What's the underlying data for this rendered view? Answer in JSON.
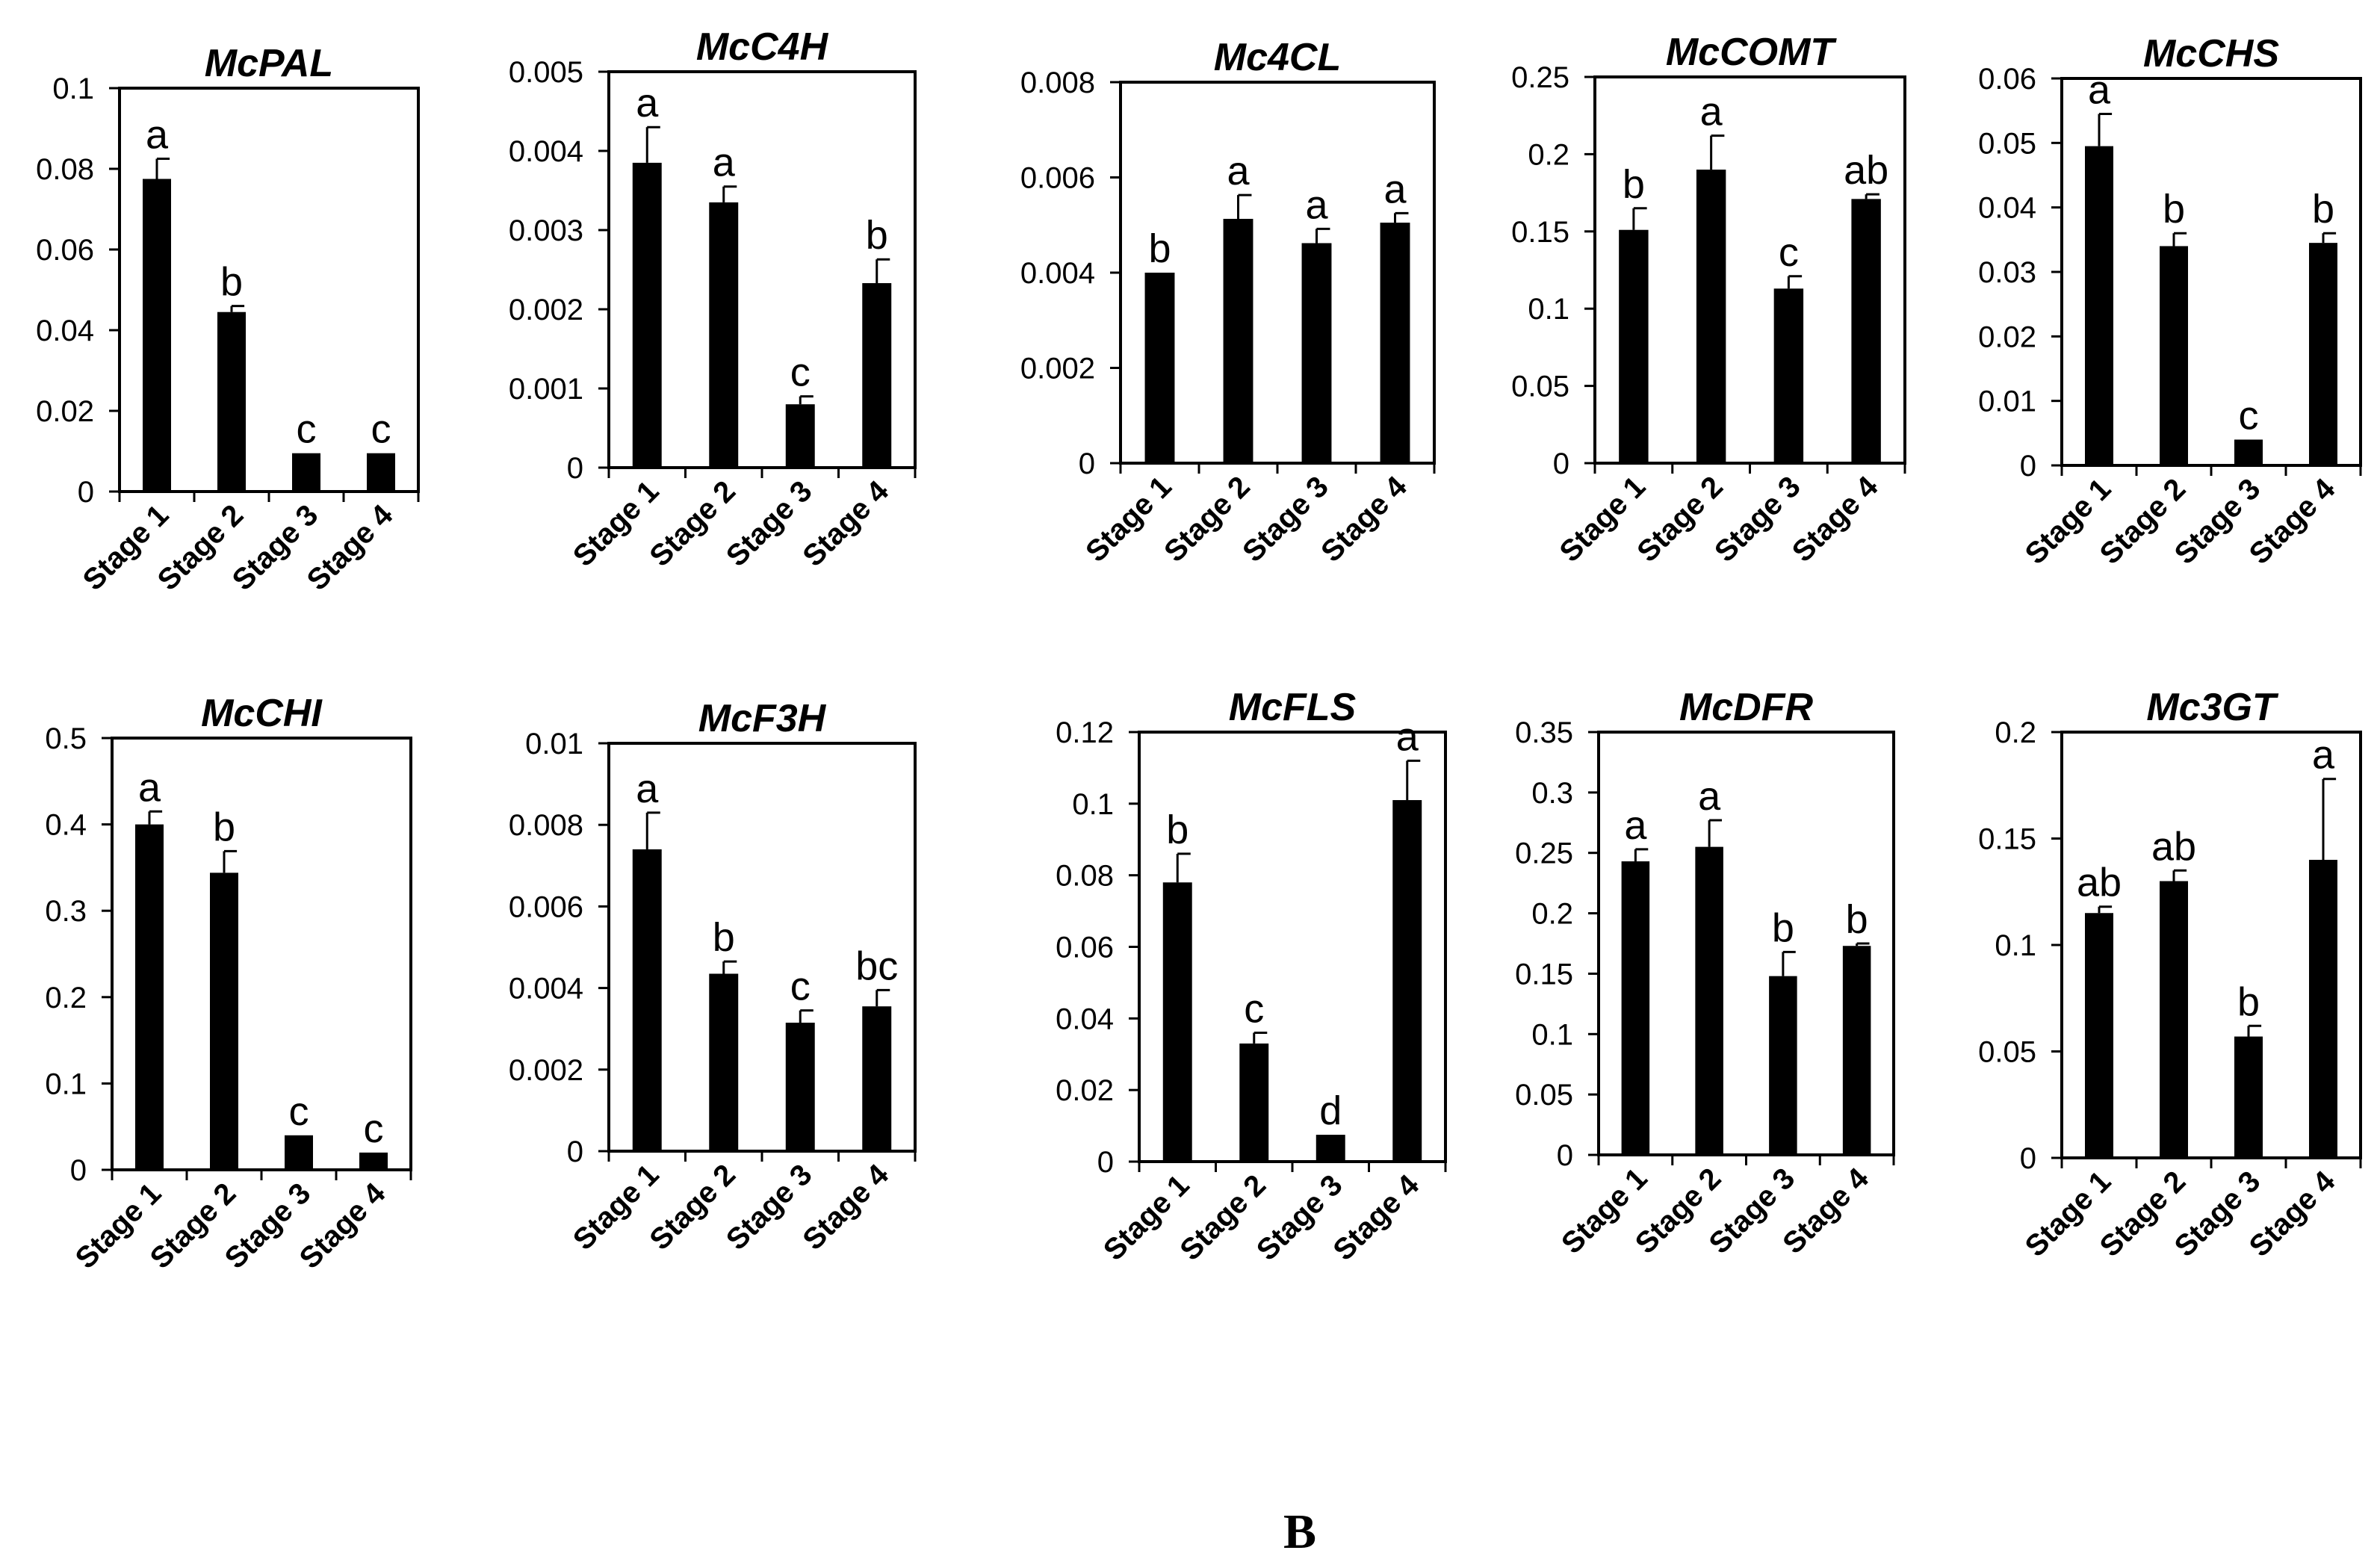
{
  "chart_data": [
    {
      "type": "bar",
      "title": "McPAL",
      "categories": [
        "Stage 1",
        "Stage 2",
        "Stage 3",
        "Stage 4"
      ],
      "values": [
        0.0775,
        0.0445,
        0.0095,
        0.0095
      ],
      "errors": [
        0.005,
        0.0015,
        0,
        0
      ],
      "letters": [
        "a",
        "b",
        "c",
        "c"
      ],
      "ylim": [
        0,
        0.1
      ],
      "yticks": [
        "0",
        "0.02",
        "0.04",
        "0.06",
        "0.08",
        "0.1"
      ]
    },
    {
      "type": "bar",
      "title": "McC4H",
      "categories": [
        "Stage 1",
        "Stage 2",
        "Stage 3",
        "Stage 4"
      ],
      "values": [
        0.00385,
        0.00335,
        0.0008,
        0.00233
      ],
      "errors": [
        0.00045,
        0.0002,
        0.0001,
        0.0003
      ],
      "letters": [
        "a",
        "a",
        "c",
        "b"
      ],
      "ylim": [
        0,
        0.005
      ],
      "yticks": [
        "0",
        "0.001",
        "0.002",
        "0.003",
        "0.004",
        "0.005"
      ]
    },
    {
      "type": "bar",
      "title": "Mc4CL",
      "categories": [
        "Stage 1",
        "Stage 2",
        "Stage 3",
        "Stage 4"
      ],
      "values": [
        0.004,
        0.00513,
        0.00462,
        0.00505
      ],
      "errors": [
        0,
        0.0005,
        0.0003,
        0.0002
      ],
      "letters": [
        "b",
        "a",
        "a",
        "a"
      ],
      "ylim": [
        0,
        0.008
      ],
      "yticks": [
        "0",
        "0.002",
        "0.004",
        "0.006",
        "0.008"
      ]
    },
    {
      "type": "bar",
      "title": "McCOMT",
      "categories": [
        "Stage 1",
        "Stage 2",
        "Stage 3",
        "Stage 4"
      ],
      "values": [
        0.151,
        0.19,
        0.113,
        0.171
      ],
      "errors": [
        0.014,
        0.022,
        0.008,
        0.003
      ],
      "letters": [
        "b",
        "a",
        "c",
        "ab"
      ],
      "ylim": [
        0,
        0.25
      ],
      "yticks": [
        "0",
        "0.05",
        "0.1",
        "0.15",
        "0.2",
        "0.25"
      ]
    },
    {
      "type": "bar",
      "title": "McCHS",
      "categories": [
        "Stage 1",
        "Stage 2",
        "Stage 3",
        "Stage 4"
      ],
      "values": [
        0.0495,
        0.034,
        0.004,
        0.0345
      ],
      "errors": [
        0.005,
        0.002,
        0,
        0.0015
      ],
      "letters": [
        "a",
        "b",
        "c",
        "b"
      ],
      "ylim": [
        0,
        0.06
      ],
      "yticks": [
        "0",
        "0.01",
        "0.02",
        "0.03",
        "0.04",
        "0.05",
        "0.06"
      ]
    },
    {
      "type": "bar",
      "title": "McCHI",
      "categories": [
        "Stage 1",
        "Stage 2",
        "Stage 3",
        "Stage 4"
      ],
      "values": [
        0.4,
        0.344,
        0.04,
        0.02
      ],
      "errors": [
        0.015,
        0.025,
        0,
        0
      ],
      "letters": [
        "a",
        "b",
        "c",
        "c"
      ],
      "ylim": [
        0,
        0.5
      ],
      "yticks": [
        "0",
        "0.1",
        "0.2",
        "0.3",
        "0.4",
        "0.5"
      ]
    },
    {
      "type": "bar",
      "title": "McF3H",
      "categories": [
        "Stage 1",
        "Stage 2",
        "Stage 3",
        "Stage 4"
      ],
      "values": [
        0.0074,
        0.00435,
        0.00315,
        0.00355
      ],
      "errors": [
        0.0009,
        0.0003,
        0.0003,
        0.0004
      ],
      "letters": [
        "a",
        "b",
        "c",
        "bc"
      ],
      "ylim": [
        0,
        0.01
      ],
      "yticks": [
        "0",
        "0.002",
        "0.004",
        "0.006",
        "0.008",
        "0.01"
      ]
    },
    {
      "type": "bar",
      "title": "McFLS",
      "categories": [
        "Stage 1",
        "Stage 2",
        "Stage 3",
        "Stage 4"
      ],
      "values": [
        0.078,
        0.033,
        0.0075,
        0.101
      ],
      "errors": [
        0.008,
        0.003,
        0,
        0.011
      ],
      "letters": [
        "b",
        "c",
        "d",
        "a"
      ],
      "ylim": [
        0,
        0.12
      ],
      "yticks": [
        "0",
        "0.02",
        "0.04",
        "0.06",
        "0.08",
        "0.1",
        "0.12"
      ]
    },
    {
      "type": "bar",
      "title": "McDFR",
      "categories": [
        "Stage 1",
        "Stage 2",
        "Stage 3",
        "Stage 4"
      ],
      "values": [
        0.243,
        0.255,
        0.148,
        0.173
      ],
      "errors": [
        0.01,
        0.022,
        0.02,
        0.002
      ],
      "letters": [
        "a",
        "a",
        "b",
        "b"
      ],
      "ylim": [
        0,
        0.35
      ],
      "yticks": [
        "0",
        "0.05",
        "0.1",
        "0.15",
        "0.2",
        "0.25",
        "0.3",
        "0.35"
      ]
    },
    {
      "type": "bar",
      "title": "Mc3GT",
      "categories": [
        "Stage 1",
        "Stage 2",
        "Stage 3",
        "Stage 4"
      ],
      "values": [
        0.115,
        0.13,
        0.057,
        0.14
      ],
      "errors": [
        0.003,
        0.005,
        0.005,
        0.038
      ],
      "letters": [
        "ab",
        "ab",
        "b",
        "a"
      ],
      "ylim": [
        0,
        0.2
      ],
      "yticks": [
        "0",
        "0.05",
        "0.1",
        "0.15",
        "0.2"
      ]
    }
  ],
  "panel_label": "B",
  "colors": {
    "bar": "#000000",
    "axis": "#000000",
    "background": "#ffffff"
  }
}
